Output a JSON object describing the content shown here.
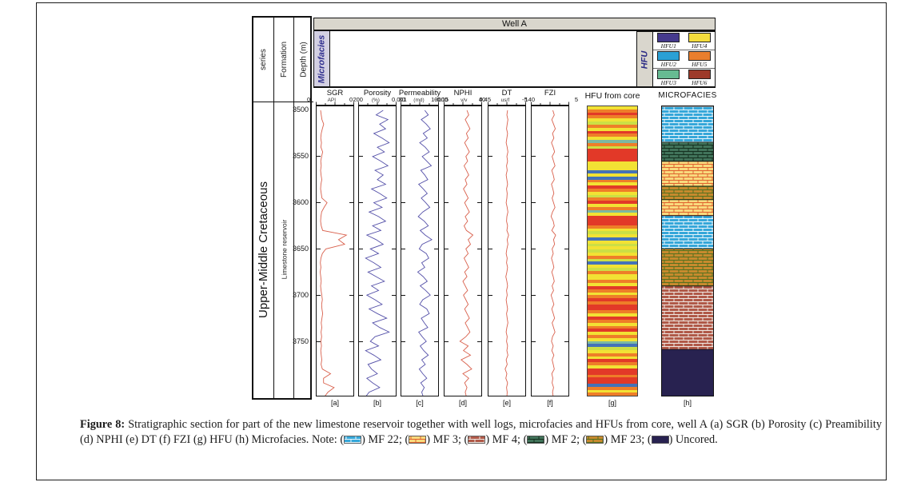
{
  "figure": {
    "well_title": "Well A",
    "microfacies_side_label": "Microfacies",
    "left_panel": {
      "headers": [
        "series",
        "Formation",
        "Depth (m)"
      ],
      "series_label": "Upper-Middle Cretaceous",
      "formation_label": "Limestone reservoir"
    },
    "legend": {
      "title": "HFU",
      "entries": [
        {
          "label": "HFU1",
          "color": "#453a8d"
        },
        {
          "label": "HFU2",
          "color": "#2aa0d5"
        },
        {
          "label": "HFU3",
          "color": "#67bb92"
        },
        {
          "label": "HFU4",
          "color": "#f3dc3d"
        },
        {
          "label": "HFU5",
          "color": "#e97e2d"
        },
        {
          "label": "HFU6",
          "color": "#9d3a2a"
        }
      ]
    }
  },
  "chart_data": {
    "type": "well-log-section",
    "depth_range": [
      3500,
      3810
    ],
    "depth_ticks": [
      3500,
      3550,
      3600,
      3650,
      3700,
      3750
    ],
    "tracks": [
      {
        "id_label": "[a]",
        "name": "SGR",
        "unit": "API",
        "min": 0,
        "max": 200,
        "min_label": "0",
        "max_label": "200",
        "color": "#d9604c",
        "values": [
          18,
          22,
          26,
          36,
          28,
          22,
          19,
          23,
          20,
          30,
          24,
          19,
          22,
          18,
          21,
          25,
          20,
          18,
          22,
          26,
          55,
          38,
          24,
          20,
          18,
          22,
          30,
          165,
          120,
          155,
          48,
          28,
          20,
          17,
          20,
          16,
          19,
          22,
          18,
          21,
          25,
          28,
          24,
          26,
          30,
          26,
          22,
          25,
          21,
          24,
          20,
          23,
          19,
          22,
          25,
          21,
          28,
          75,
          35,
          35,
          95,
          60,
          40
        ]
      },
      {
        "id_label": "[b]",
        "name": "Porosity",
        "unit": "(%)",
        "min": 0,
        "max": 30,
        "min_label": "0",
        "max_label": "30",
        "color": "#5551a9",
        "values": [
          20,
          14,
          24,
          17,
          22,
          12,
          19,
          25,
          15,
          21,
          11,
          18,
          24,
          13,
          20,
          15,
          22,
          10,
          17,
          23,
          12,
          19,
          8,
          16,
          22,
          11,
          18,
          6,
          14,
          20,
          9,
          16,
          5,
          12,
          18,
          7,
          14,
          21,
          10,
          16,
          6,
          13,
          19,
          8,
          15,
          23,
          11,
          17,
          25,
          13,
          9,
          16,
          5,
          12,
          18,
          7,
          10,
          15,
          6,
          11,
          17,
          8,
          5
        ]
      },
      {
        "id_label": "[c]",
        "name": "Permeability",
        "unit": "(md)",
        "min": -3,
        "max": 4,
        "min_label": "0.001",
        "max_label": "10000",
        "color": "#5551a9",
        "scale": "log10",
        "values": [
          1.5,
          2.2,
          0.8,
          1.8,
          2.6,
          1.2,
          2.0,
          0.5,
          1.6,
          2.4,
          1.0,
          1.9,
          2.8,
          0.7,
          1.5,
          2.1,
          0.3,
          1.2,
          2.0,
          0.8,
          1.7,
          2.5,
          1.1,
          0.2,
          1.4,
          2.2,
          0.6,
          1.6,
          2.9,
          1.0,
          0.4,
          1.8,
          2.3,
          0.9,
          1.5,
          0.1,
          1.2,
          2.0,
          0.6,
          1.7,
          2.6,
          1.1,
          0.5,
          1.9,
          2.4,
          0.8,
          1.4,
          2.1,
          0.3,
          1.0,
          1.8,
          0.6,
          1.3,
          2.2,
          0.9,
          1.6,
          0.4,
          1.1,
          1.9,
          0.7,
          1.4,
          0.9,
          1.2
        ]
      },
      {
        "id_label": "[d]",
        "name": "NPHI",
        "unit": "v/v",
        "min": -0.15,
        "max": 0.45,
        "min_label": "-0.15",
        "max_label": "0.45",
        "color": "#d9604c",
        "values": [
          0.22,
          0.25,
          0.19,
          0.23,
          0.27,
          0.21,
          0.24,
          0.18,
          0.22,
          0.26,
          0.2,
          0.23,
          0.17,
          0.21,
          0.25,
          0.19,
          0.22,
          0.16,
          0.2,
          0.24,
          0.18,
          0.22,
          0.26,
          0.19,
          0.23,
          0.17,
          0.21,
          0.32,
          0.24,
          0.28,
          0.2,
          0.24,
          0.17,
          0.21,
          0.25,
          0.18,
          0.22,
          0.15,
          0.19,
          0.23,
          0.16,
          0.2,
          0.24,
          0.18,
          0.22,
          0.26,
          0.19,
          0.23,
          0.27,
          0.2,
          0.1,
          0.24,
          0.16,
          0.28,
          0.12,
          0.22,
          0.3,
          0.15,
          0.25,
          0.18,
          0.22,
          0.19,
          0.21
        ]
      },
      {
        "id_label": "[e]",
        "name": "DT",
        "unit": "us/f",
        "min": 40,
        "max": 140,
        "min_label": "40",
        "max_label": "140",
        "color": "#d9604c",
        "values": [
          92,
          90,
          93,
          91,
          89,
          92,
          90,
          88,
          91,
          93,
          90,
          92,
          89,
          91,
          88,
          90,
          92,
          89,
          91,
          90,
          88,
          91,
          93,
          90,
          89,
          92,
          90,
          95,
          91,
          93,
          90,
          88,
          91,
          89,
          92,
          90,
          87,
          90,
          92,
          89,
          91,
          88,
          90,
          92,
          89,
          91,
          93,
          90,
          88,
          91,
          89,
          92,
          90,
          93,
          88,
          91,
          85,
          90,
          87,
          92,
          89,
          91,
          90
        ]
      },
      {
        "id_label": "[f]",
        "name": "FZI",
        "unit": "",
        "min": -5,
        "max": 5,
        "min_label": "-5",
        "max_label": "5",
        "color": "#d9604c",
        "values": [
          0.8,
          1.2,
          0.5,
          1.0,
          1.5,
          0.7,
          1.1,
          0.4,
          0.9,
          1.3,
          0.6,
          1.0,
          1.4,
          0.5,
          0.9,
          1.2,
          0.4,
          0.8,
          1.1,
          0.6,
          1.0,
          1.4,
          0.7,
          0.3,
          0.9,
          1.2,
          0.5,
          1.6,
          1.0,
          1.3,
          0.6,
          0.9,
          0.4,
          0.8,
          1.1,
          0.5,
          0.9,
          1.2,
          0.6,
          1.0,
          0.3,
          0.7,
          1.1,
          0.5,
          0.9,
          1.3,
          0.6,
          1.0,
          1.4,
          0.7,
          0.4,
          0.9,
          0.5,
          1.1,
          0.6,
          0.9,
          1.2,
          0.5,
          0.8,
          0.6,
          1.0,
          0.7,
          0.9
        ]
      }
    ],
    "hfu_core": {
      "title": "HFU from core",
      "id_label": "[g]",
      "palette": {
        "r": "#e23928",
        "o": "#ee7e28",
        "y": "#f2e234",
        "g": "#cbdf45",
        "t": "#7cb8a2",
        "b": "#4472b8"
      },
      "stripes": [
        "y",
        "o",
        "r",
        "o",
        "y",
        "g",
        "o",
        "y",
        "r",
        "o",
        "y",
        "t",
        "o",
        "g",
        "r",
        "r",
        "r",
        "r",
        "y",
        "y",
        "y",
        "b",
        "y",
        "b",
        "o",
        "y",
        "r",
        "o",
        "y",
        "g",
        "o",
        "r",
        "y",
        "o",
        "t",
        "y",
        "r",
        "r",
        "r",
        "o",
        "y",
        "g",
        "y",
        "b",
        "y",
        "g",
        "y",
        "g",
        "y",
        "o",
        "g",
        "b",
        "y",
        "g",
        "o",
        "y",
        "y",
        "o",
        "y",
        "r",
        "o",
        "y",
        "o",
        "r",
        "o",
        "r",
        "r",
        "o",
        "y",
        "r",
        "o",
        "y",
        "o",
        "r",
        "y",
        "o",
        "y",
        "t",
        "b",
        "g",
        "y",
        "o",
        "y",
        "r",
        "o",
        "y",
        "r",
        "r",
        "o",
        "r",
        "r",
        "b",
        "o",
        "y",
        "o"
      ]
    },
    "microfacies": {
      "title": "MICROFACIES",
      "id_label": "[h]",
      "zones": [
        {
          "facies": "MF 22",
          "pattern": "mf22",
          "height_pct": 12.4
        },
        {
          "facies": "MF 2",
          "pattern": "mf2",
          "height_pct": 6.6
        },
        {
          "facies": "MF 3",
          "pattern": "mf3",
          "height_pct": 8.6
        },
        {
          "facies": "MF 23",
          "pattern": "mf23",
          "height_pct": 4.7
        },
        {
          "facies": "MF 3",
          "pattern": "mf3",
          "height_pct": 5.5
        },
        {
          "facies": "MF 22",
          "pattern": "mf22",
          "height_pct": 11.4
        },
        {
          "facies": "MF 23",
          "pattern": "mf23",
          "height_pct": 12.9
        },
        {
          "facies": "MF 4",
          "pattern": "mf4",
          "height_pct": 21.9
        },
        {
          "facies": "Uncored",
          "pattern": "uncored",
          "height_pct": 16.0
        }
      ]
    }
  },
  "facies_patterns": {
    "mf22": {
      "base": "#35a7d9",
      "mortar": "#eaf6fc"
    },
    "mf2": {
      "base": "#41735a",
      "mortar": "#15301f"
    },
    "mf3": {
      "base": "#f8da7d",
      "mortar": "#e0622f"
    },
    "mf23": {
      "base": "#c78a2e",
      "mortar": "#55711f"
    },
    "mf4": {
      "base": "#b05948",
      "mortar": "#efe8e2"
    },
    "uncored": {
      "base": "#282250",
      "mortar": "#282250"
    }
  },
  "caption": {
    "label": "Figure 8:",
    "body": "Stratigraphic section for part of the new limestone reservoir together with well logs, microfacies and HFUs from core, well A (a) SGR (b) Porosity (c) Preamibility (d) NPHI (e) DT (f) FZI (g) HFU (h) Microfacies. Note:",
    "notes": [
      {
        "pattern": "mf22",
        "label": "MF 22;"
      },
      {
        "pattern": "mf3",
        "label": "MF 3;"
      },
      {
        "pattern": "mf4",
        "label": "MF 4;"
      },
      {
        "pattern": "mf2",
        "label": "MF 2;"
      },
      {
        "pattern": "mf23",
        "label": "MF 23;"
      },
      {
        "pattern": "uncored",
        "label": "Uncored."
      }
    ]
  }
}
